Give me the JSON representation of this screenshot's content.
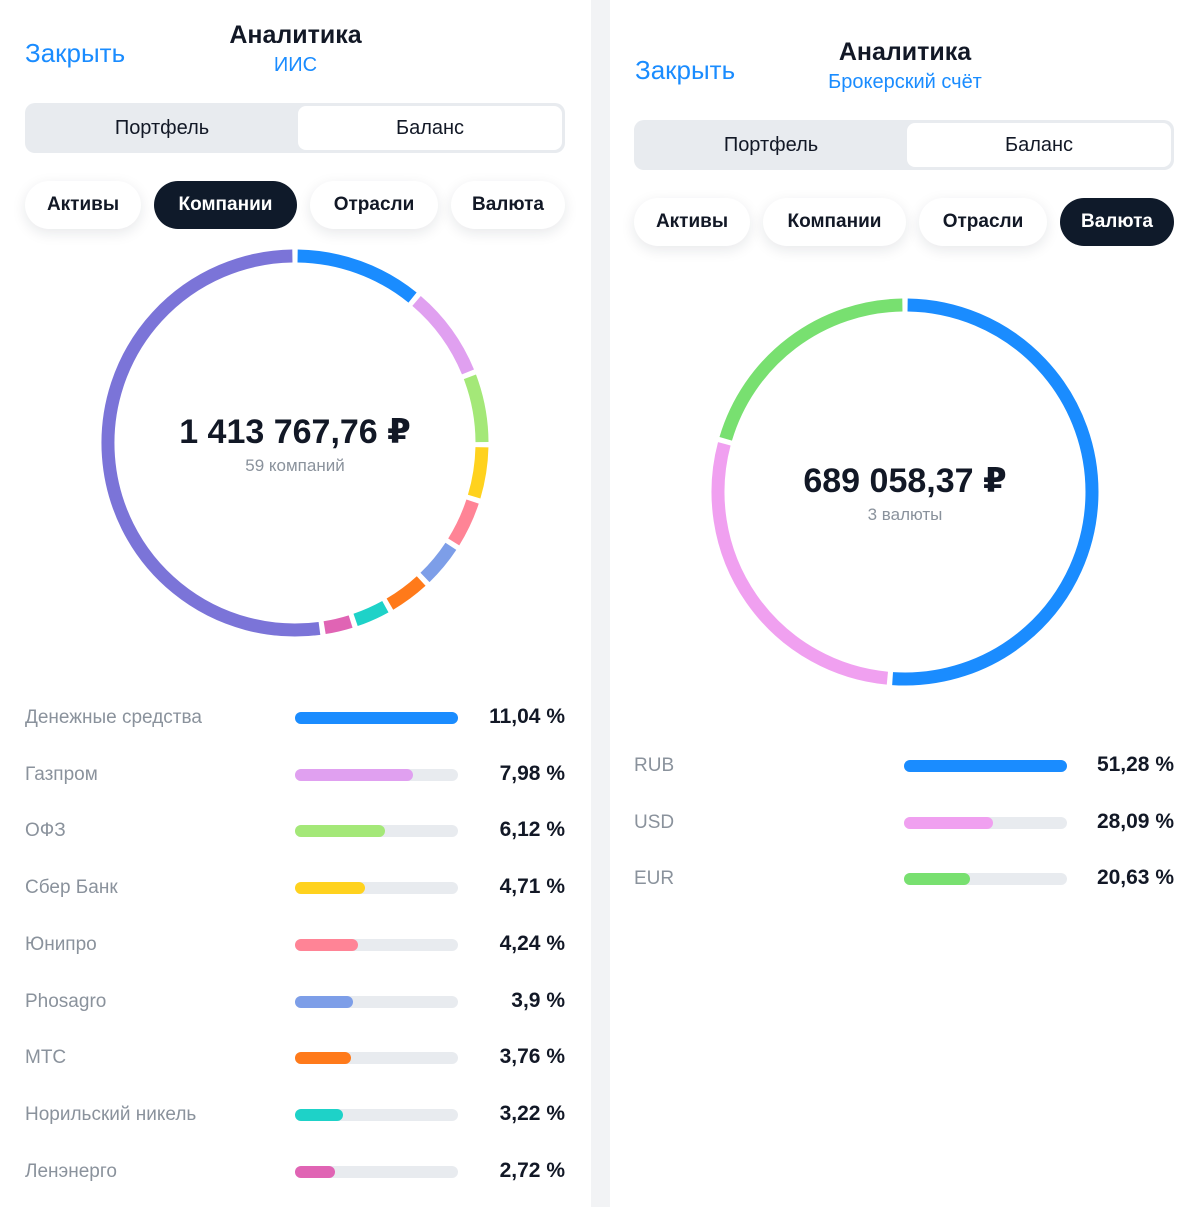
{
  "screens": [
    {
      "close_label": "Закрыть",
      "title": "Аналитика",
      "subtitle": "ИИС",
      "segments": [
        {
          "label": "Портфель",
          "active": false
        },
        {
          "label": "Баланс",
          "active": true
        }
      ],
      "chips": [
        {
          "label": "Активы",
          "active": false
        },
        {
          "label": "Компании",
          "active": true
        },
        {
          "label": "Отрасли",
          "active": false
        },
        {
          "label": "Валюта",
          "active": false
        }
      ],
      "total": "1 413 767,76 ₽",
      "caption": "59 компаний",
      "chart_data": {
        "type": "pie",
        "series": [
          {
            "name": "Денежные средства",
            "value": 11.04,
            "display": "11,04 %",
            "color": "#1a8cff"
          },
          {
            "name": "Газпром",
            "value": 7.98,
            "display": "7,98 %",
            "color": "#e0a0f0"
          },
          {
            "name": "ОФЗ",
            "value": 6.12,
            "display": "6,12 %",
            "color": "#a4e878"
          },
          {
            "name": "Сбер Банк",
            "value": 4.71,
            "display": "4,71 %",
            "color": "#ffd21e"
          },
          {
            "name": "Юнипро",
            "value": 4.24,
            "display": "4,24 %",
            "color": "#ff8496"
          },
          {
            "name": "Phosagro",
            "value": 3.9,
            "display": "3,9 %",
            "color": "#7d9ee8"
          },
          {
            "name": "МТС",
            "value": 3.76,
            "display": "3,76 %",
            "color": "#ff7a1a"
          },
          {
            "name": "Норильский никель",
            "value": 3.22,
            "display": "3,22 %",
            "color": "#1ed2c8"
          },
          {
            "name": "Ленэнерго",
            "value": 2.72,
            "display": "2,72 %",
            "color": "#e064b4"
          }
        ],
        "rest_color": "#7b74d8"
      }
    },
    {
      "close_label": "Закрыть",
      "title": "Аналитика",
      "subtitle": "Брокерский счёт",
      "segments": [
        {
          "label": "Портфель",
          "active": false
        },
        {
          "label": "Баланс",
          "active": true
        }
      ],
      "chips": [
        {
          "label": "Активы",
          "active": false
        },
        {
          "label": "Компании",
          "active": false
        },
        {
          "label": "Отрасли",
          "active": false
        },
        {
          "label": "Валюта",
          "active": true
        }
      ],
      "total": "689 058,37 ₽",
      "caption": "3 валюты",
      "chart_data": {
        "type": "pie",
        "series": [
          {
            "name": "RUB",
            "value": 51.28,
            "display": "51,28 %",
            "color": "#1a8cff"
          },
          {
            "name": "USD",
            "value": 28.09,
            "display": "28,09 %",
            "color": "#f0a0f0"
          },
          {
            "name": "EUR",
            "value": 20.63,
            "display": "20,63 %",
            "color": "#78e070"
          }
        ],
        "rest_color": ""
      }
    }
  ]
}
